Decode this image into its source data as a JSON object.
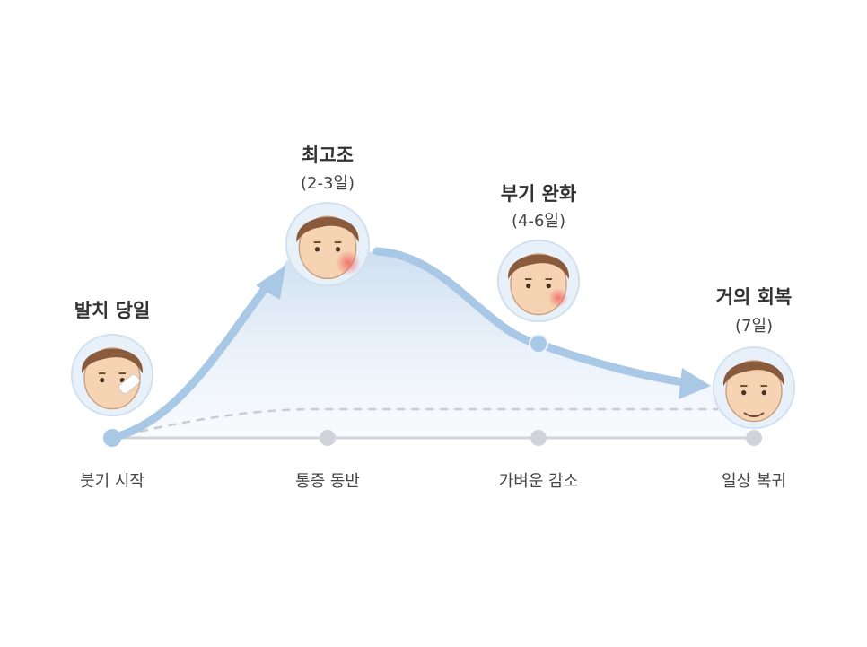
{
  "stages": [
    {
      "title": "발치 당일",
      "caption": "붓기 시작"
    },
    {
      "title": "최고조",
      "period": "(2-3일)",
      "caption": "통증 동반"
    },
    {
      "title": "부기 완화",
      "period": "(4-6일)",
      "caption": "가벼운 감소"
    },
    {
      "title": "거의 회복",
      "period": "(7일)",
      "caption": "일상 복귀"
    }
  ]
}
